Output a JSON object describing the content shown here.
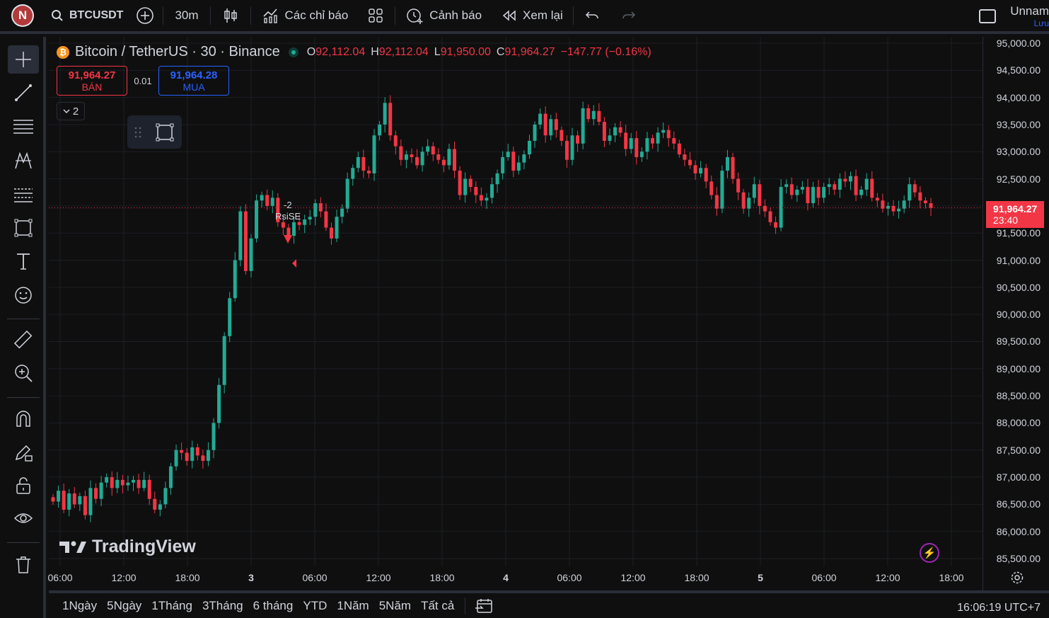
{
  "topbar": {
    "avatar_letter": "N",
    "symbol": "BTCUSDT",
    "interval": "30m",
    "indicators": "Các chỉ báo",
    "alerts": "Cảnh báo",
    "replay": "Xem lại",
    "user": "Unnam",
    "save": "Lưu"
  },
  "legend": {
    "title": "Bitcoin / TetherUS · 30 · Binance",
    "o_label": "O",
    "o": "92,112.04",
    "h_label": "H",
    "h": "92,112.04",
    "l_label": "L",
    "l": "91,950.00",
    "c_label": "C",
    "c": "91,964.27",
    "change": "−147.77 (−0.16%)"
  },
  "trade": {
    "sell_price": "91,964.27",
    "sell_label": "BÁN",
    "qty": "0.01",
    "buy_price": "91,964.28",
    "buy_label": "MUA",
    "indicator_count": "2"
  },
  "signal": {
    "label": "RsiSE",
    "value": "-2"
  },
  "current": {
    "price": "91,964.27",
    "countdown": "23:40"
  },
  "watermark": "TradingView",
  "ranges": [
    "1Ngày",
    "5Ngày",
    "1Tháng",
    "3Tháng",
    "6 tháng",
    "YTD",
    "1Năm",
    "5Năm",
    "Tất cả"
  ],
  "clock": "16:06:19 UTC+7",
  "colors": {
    "up": "#22ab94",
    "down": "#f23645",
    "accent": "#2962ff",
    "background": "#0f0f0f"
  },
  "chart_data": {
    "type": "candlestick",
    "price_axis": [
      "95,000.00",
      "94,500.00",
      "94,000.00",
      "93,500.00",
      "93,000.00",
      "92,500.00",
      "92,000.00",
      "91,500.00",
      "91,000.00",
      "90,500.00",
      "90,000.00",
      "89,500.00",
      "89,000.00",
      "88,500.00",
      "88,000.00",
      "87,500.00",
      "87,000.00",
      "86,500.00",
      "86,000.00",
      "85,500.00"
    ],
    "ylim": [
      85350,
      95100
    ],
    "time_axis": [
      "06:00",
      "12:00",
      "18:00",
      "3",
      "06:00",
      "12:00",
      "18:00",
      "4",
      "06:00",
      "12:00",
      "18:00",
      "5",
      "06:00",
      "12:00",
      "18:00"
    ],
    "grid": true,
    "closes": [
      86550,
      86750,
      86400,
      86700,
      86500,
      86650,
      86300,
      86800,
      86600,
      86900,
      87000,
      86800,
      86950,
      86850,
      86900,
      86950,
      86800,
      86950,
      86600,
      86400,
      86500,
      86800,
      87200,
      87500,
      87450,
      87300,
      87550,
      87400,
      87300,
      87500,
      88000,
      88700,
      89600,
      90300,
      91000,
      91900,
      90800,
      91400,
      92100,
      92200,
      92000,
      92150,
      91700,
      91600,
      91450,
      91700,
      91650,
      91750,
      91800,
      92050,
      91900,
      91600,
      91400,
      91800,
      91950,
      92500,
      92700,
      92900,
      92650,
      92600,
      93300,
      93500,
      93900,
      93300,
      93100,
      92850,
      92950,
      92900,
      92750,
      93000,
      93100,
      92950,
      92850,
      92750,
      93050,
      92650,
      92200,
      92500,
      92350,
      92200,
      92100,
      92150,
      92400,
      92600,
      92900,
      93000,
      92650,
      92800,
      92950,
      93200,
      93500,
      93700,
      93300,
      93600,
      93400,
      93200,
      92850,
      93300,
      93150,
      93800,
      93600,
      93750,
      93550,
      93200,
      93300,
      93450,
      93350,
      93050,
      93250,
      92900,
      93000,
      93250,
      93150,
      93350,
      93400,
      93250,
      93150,
      92950,
      92850,
      92750,
      92600,
      92700,
      92450,
      92200,
      91950,
      92650,
      92900,
      92500,
      92250,
      91950,
      92150,
      92400,
      92000,
      91900,
      91700,
      91600,
      92350,
      92400,
      92200,
      92300,
      92350,
      92050,
      92350,
      92150,
      92350,
      92400,
      92300,
      92500,
      92450,
      92550,
      92200,
      92300,
      92500,
      92150,
      92100,
      91950,
      92000,
      91900,
      91950,
      92100,
      92400,
      92250,
      92100,
      92050,
      91964
    ]
  }
}
